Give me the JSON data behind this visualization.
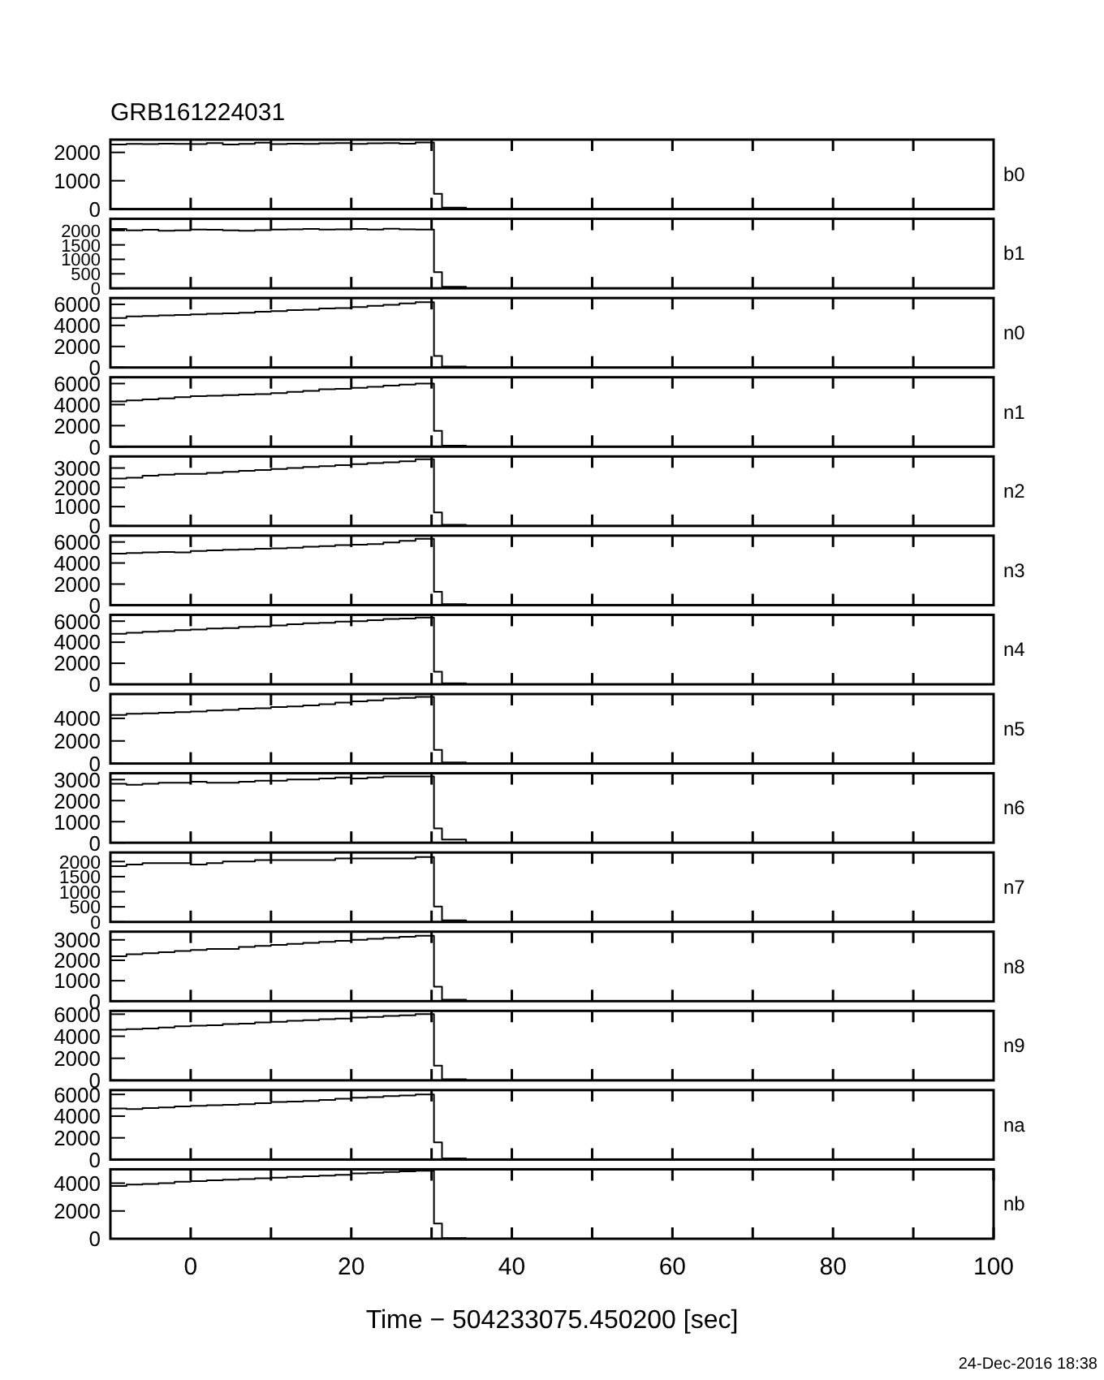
{
  "chart_data": [
    {
      "type": "step",
      "title": "GRB161224031",
      "x": [
        -10,
        -8,
        -6,
        -4,
        -2,
        0,
        2,
        4,
        6,
        8,
        10,
        12,
        14,
        16,
        18,
        20,
        22,
        24,
        26,
        28,
        30.3,
        31.3,
        34.3
      ],
      "xlim": [
        -10,
        100
      ],
      "xticks": [
        {
          "value": 0,
          "label": null
        },
        {
          "value": 10,
          "label": null
        },
        {
          "value": 20,
          "label": null
        },
        {
          "value": 30,
          "label": null
        },
        {
          "value": 40,
          "label": null
        },
        {
          "value": 50,
          "label": null
        },
        {
          "value": 60,
          "label": null
        },
        {
          "value": 70,
          "label": null
        },
        {
          "value": 80,
          "label": null
        },
        {
          "value": 90,
          "label": null
        }
      ],
      "ylim": [
        0,
        2450
      ],
      "yticks": [
        0,
        1000,
        2000
      ],
      "tick_labels": "y",
      "series": [
        {
          "name": "b0",
          "color": "#000000",
          "values": [
            2280,
            2300,
            2290,
            2310,
            2300,
            2290,
            2330,
            2280,
            2300,
            2340,
            2290,
            2310,
            2300,
            2320,
            2330,
            2300,
            2320,
            2330,
            2310,
            2350,
            540,
            50,
            0
          ]
        }
      ]
    },
    {
      "type": "step",
      "x": [
        -10,
        -8,
        -6,
        -4,
        -2,
        0,
        2,
        4,
        6,
        8,
        10,
        12,
        14,
        16,
        18,
        20,
        22,
        24,
        26,
        28,
        30.3,
        31.3,
        34.3
      ],
      "xlim": [
        -10,
        100
      ],
      "xticks": [
        {
          "value": 0,
          "label": null
        },
        {
          "value": 10,
          "label": null
        },
        {
          "value": 20,
          "label": null
        },
        {
          "value": 30,
          "label": null
        },
        {
          "value": 40,
          "label": null
        },
        {
          "value": 50,
          "label": null
        },
        {
          "value": 60,
          "label": null
        },
        {
          "value": 70,
          "label": null
        },
        {
          "value": 80,
          "label": null
        },
        {
          "value": 90,
          "label": null
        }
      ],
      "ylim": [
        0,
        2400
      ],
      "yticks": [
        0,
        500,
        1000,
        1500,
        2000
      ],
      "tick_labels": "y",
      "series": [
        {
          "name": "b1",
          "color": "#000000",
          "values": [
            2050,
            2000,
            2020,
            1990,
            2000,
            2030,
            2020,
            2000,
            1990,
            2010,
            2030,
            2040,
            2050,
            2030,
            2040,
            2050,
            2030,
            2060,
            2040,
            2030,
            560,
            50,
            0
          ]
        }
      ]
    },
    {
      "type": "step",
      "x": [
        -10,
        -8,
        -6,
        -4,
        -2,
        0,
        2,
        4,
        6,
        8,
        10,
        12,
        14,
        16,
        18,
        20,
        22,
        24,
        26,
        28,
        30.3,
        31.3,
        34.3
      ],
      "xlim": [
        -10,
        100
      ],
      "xticks": [
        {
          "value": 0,
          "label": null
        },
        {
          "value": 10,
          "label": null
        },
        {
          "value": 20,
          "label": null
        },
        {
          "value": 30,
          "label": null
        },
        {
          "value": 40,
          "label": null
        },
        {
          "value": 50,
          "label": null
        },
        {
          "value": 60,
          "label": null
        },
        {
          "value": 70,
          "label": null
        },
        {
          "value": 80,
          "label": null
        },
        {
          "value": 90,
          "label": null
        }
      ],
      "ylim": [
        0,
        6600
      ],
      "yticks": [
        0,
        2000,
        4000,
        6000
      ],
      "tick_labels": "y",
      "series": [
        {
          "name": "n0",
          "color": "#000000",
          "values": [
            4700,
            4850,
            4900,
            4950,
            5000,
            5050,
            5100,
            5150,
            5200,
            5300,
            5350,
            5450,
            5500,
            5600,
            5650,
            5750,
            5850,
            5950,
            6100,
            6200,
            1100,
            100,
            0
          ]
        }
      ]
    },
    {
      "type": "step",
      "x": [
        -10,
        -8,
        -6,
        -4,
        -2,
        0,
        2,
        4,
        6,
        8,
        10,
        12,
        14,
        16,
        18,
        20,
        22,
        24,
        26,
        28,
        30.3,
        31.3,
        34.3
      ],
      "xlim": [
        -10,
        100
      ],
      "xticks": [
        {
          "value": 0,
          "label": null
        },
        {
          "value": 10,
          "label": null
        },
        {
          "value": 20,
          "label": null
        },
        {
          "value": 30,
          "label": null
        },
        {
          "value": 40,
          "label": null
        },
        {
          "value": 50,
          "label": null
        },
        {
          "value": 60,
          "label": null
        },
        {
          "value": 70,
          "label": null
        },
        {
          "value": 80,
          "label": null
        },
        {
          "value": 90,
          "label": null
        }
      ],
      "ylim": [
        0,
        6600
      ],
      "yticks": [
        0,
        2000,
        4000,
        6000
      ],
      "tick_labels": "y",
      "series": [
        {
          "name": "n1",
          "color": "#000000",
          "values": [
            4300,
            4400,
            4500,
            4600,
            4700,
            4800,
            4850,
            4900,
            4950,
            5000,
            5100,
            5200,
            5300,
            5450,
            5500,
            5600,
            5700,
            5800,
            5900,
            6000,
            1500,
            100,
            0
          ]
        }
      ]
    },
    {
      "type": "step",
      "x": [
        -10,
        -8,
        -6,
        -4,
        -2,
        0,
        2,
        4,
        6,
        8,
        10,
        12,
        14,
        16,
        18,
        20,
        22,
        24,
        26,
        28,
        30.3,
        31.3,
        34.3
      ],
      "xlim": [
        -10,
        100
      ],
      "xticks": [
        {
          "value": 0,
          "label": null
        },
        {
          "value": 10,
          "label": null
        },
        {
          "value": 20,
          "label": null
        },
        {
          "value": 30,
          "label": null
        },
        {
          "value": 40,
          "label": null
        },
        {
          "value": 50,
          "label": null
        },
        {
          "value": 60,
          "label": null
        },
        {
          "value": 70,
          "label": null
        },
        {
          "value": 80,
          "label": null
        },
        {
          "value": 90,
          "label": null
        }
      ],
      "ylim": [
        0,
        3600
      ],
      "yticks": [
        0,
        1000,
        2000,
        3000
      ],
      "tick_labels": "y",
      "series": [
        {
          "name": "n2",
          "color": "#000000",
          "values": [
            2450,
            2500,
            2600,
            2650,
            2700,
            2700,
            2750,
            2800,
            2850,
            2900,
            2950,
            3000,
            3050,
            3100,
            3150,
            3200,
            3250,
            3300,
            3350,
            3450,
            700,
            60,
            0
          ]
        }
      ]
    },
    {
      "type": "step",
      "x": [
        -10,
        -8,
        -6,
        -4,
        -2,
        0,
        2,
        4,
        6,
        8,
        10,
        12,
        14,
        16,
        18,
        20,
        22,
        24,
        26,
        28,
        30.3,
        31.3,
        34.3
      ],
      "xlim": [
        -10,
        100
      ],
      "xticks": [
        {
          "value": 0,
          "label": null
        },
        {
          "value": 10,
          "label": null
        },
        {
          "value": 20,
          "label": null
        },
        {
          "value": 30,
          "label": null
        },
        {
          "value": 40,
          "label": null
        },
        {
          "value": 50,
          "label": null
        },
        {
          "value": 60,
          "label": null
        },
        {
          "value": 70,
          "label": null
        },
        {
          "value": 80,
          "label": null
        },
        {
          "value": 90,
          "label": null
        }
      ],
      "ylim": [
        0,
        6600
      ],
      "yticks": [
        0,
        2000,
        4000,
        6000
      ],
      "tick_labels": "y",
      "series": [
        {
          "name": "n3",
          "color": "#000000",
          "values": [
            4900,
            4950,
            5000,
            5050,
            5000,
            5150,
            5200,
            5250,
            5300,
            5350,
            5400,
            5450,
            5550,
            5600,
            5700,
            5750,
            5800,
            5950,
            6100,
            6300,
            1270,
            100,
            0
          ]
        }
      ]
    },
    {
      "type": "step",
      "x": [
        -10,
        -8,
        -6,
        -4,
        -2,
        0,
        2,
        4,
        6,
        8,
        10,
        12,
        14,
        16,
        18,
        20,
        22,
        24,
        26,
        28,
        30.3,
        31.3,
        34.3
      ],
      "xlim": [
        -10,
        100
      ],
      "xticks": [
        {
          "value": 0,
          "label": null
        },
        {
          "value": 10,
          "label": null
        },
        {
          "value": 20,
          "label": null
        },
        {
          "value": 30,
          "label": null
        },
        {
          "value": 40,
          "label": null
        },
        {
          "value": 50,
          "label": null
        },
        {
          "value": 60,
          "label": null
        },
        {
          "value": 70,
          "label": null
        },
        {
          "value": 80,
          "label": null
        },
        {
          "value": 90,
          "label": null
        }
      ],
      "ylim": [
        0,
        6600
      ],
      "yticks": [
        0,
        2000,
        4000,
        6000
      ],
      "tick_labels": "y",
      "series": [
        {
          "name": "n4",
          "color": "#000000",
          "values": [
            4800,
            4900,
            5000,
            5050,
            5150,
            5200,
            5300,
            5350,
            5450,
            5500,
            5600,
            5700,
            5800,
            5850,
            5950,
            6000,
            6100,
            6200,
            6250,
            6350,
            1200,
            100,
            0
          ]
        }
      ]
    },
    {
      "type": "step",
      "x": [
        -10,
        -8,
        -6,
        -4,
        -2,
        0,
        2,
        4,
        6,
        8,
        10,
        12,
        14,
        16,
        18,
        20,
        22,
        24,
        26,
        28,
        30.3,
        31.3,
        34.3
      ],
      "xlim": [
        -10,
        100
      ],
      "xticks": [
        {
          "value": 0,
          "label": null
        },
        {
          "value": 10,
          "label": null
        },
        {
          "value": 20,
          "label": null
        },
        {
          "value": 30,
          "label": null
        },
        {
          "value": 40,
          "label": null
        },
        {
          "value": 50,
          "label": null
        },
        {
          "value": 60,
          "label": null
        },
        {
          "value": 70,
          "label": null
        },
        {
          "value": 80,
          "label": null
        },
        {
          "value": 90,
          "label": null
        }
      ],
      "ylim": [
        0,
        6150
      ],
      "yticks": [
        0,
        2000,
        4000
      ],
      "tick_labels": "y",
      "series": [
        {
          "name": "n5",
          "color": "#000000",
          "values": [
            4300,
            4400,
            4450,
            4500,
            4550,
            4600,
            4700,
            4750,
            4850,
            4900,
            5000,
            5050,
            5150,
            5250,
            5400,
            5500,
            5600,
            5750,
            5800,
            5900,
            1200,
            100,
            0
          ]
        }
      ]
    },
    {
      "type": "step",
      "x": [
        -10,
        -8,
        -6,
        -4,
        -2,
        0,
        2,
        4,
        6,
        8,
        10,
        12,
        14,
        16,
        18,
        20,
        22,
        24,
        26,
        28,
        30.3,
        31.3,
        34.3
      ],
      "xlim": [
        -10,
        100
      ],
      "xticks": [
        {
          "value": 0,
          "label": null
        },
        {
          "value": 10,
          "label": null
        },
        {
          "value": 20,
          "label": null
        },
        {
          "value": 30,
          "label": null
        },
        {
          "value": 40,
          "label": null
        },
        {
          "value": 50,
          "label": null
        },
        {
          "value": 60,
          "label": null
        },
        {
          "value": 70,
          "label": null
        },
        {
          "value": 80,
          "label": null
        },
        {
          "value": 90,
          "label": null
        }
      ],
      "ylim": [
        0,
        3300
      ],
      "yticks": [
        0,
        1000,
        2000,
        3000
      ],
      "tick_labels": "y",
      "series": [
        {
          "name": "n6",
          "color": "#000000",
          "values": [
            2800,
            2750,
            2800,
            2850,
            2850,
            2900,
            2850,
            2850,
            2900,
            2950,
            2950,
            3000,
            3000,
            3050,
            3100,
            3050,
            3100,
            3150,
            3150,
            3150,
            680,
            150,
            0
          ]
        }
      ]
    },
    {
      "type": "step",
      "x": [
        -10,
        -8,
        -6,
        -4,
        -2,
        0,
        2,
        4,
        6,
        8,
        10,
        12,
        14,
        16,
        18,
        20,
        22,
        24,
        26,
        28,
        30.3,
        31.3,
        34.3
      ],
      "xlim": [
        -10,
        100
      ],
      "xticks": [
        {
          "value": 0,
          "label": null
        },
        {
          "value": 10,
          "label": null
        },
        {
          "value": 20,
          "label": null
        },
        {
          "value": 30,
          "label": null
        },
        {
          "value": 40,
          "label": null
        },
        {
          "value": 50,
          "label": null
        },
        {
          "value": 60,
          "label": null
        },
        {
          "value": 70,
          "label": null
        },
        {
          "value": 80,
          "label": null
        },
        {
          "value": 90,
          "label": null
        }
      ],
      "ylim": [
        0,
        2300
      ],
      "yticks": [
        0,
        500,
        1000,
        1500,
        2000
      ],
      "tick_labels": "y",
      "series": [
        {
          "name": "n7",
          "color": "#000000",
          "values": [
            1850,
            1900,
            1950,
            1950,
            1950,
            1900,
            1950,
            2000,
            2000,
            2050,
            2050,
            2050,
            2050,
            2050,
            2100,
            2100,
            2100,
            2100,
            2100,
            2150,
            510,
            50,
            0
          ]
        }
      ]
    },
    {
      "type": "step",
      "x": [
        -10,
        -8,
        -6,
        -4,
        -2,
        0,
        2,
        4,
        6,
        8,
        10,
        12,
        14,
        16,
        18,
        20,
        22,
        24,
        26,
        28,
        30.3,
        31.3,
        34.3
      ],
      "xlim": [
        -10,
        100
      ],
      "xticks": [
        {
          "value": 0,
          "label": null
        },
        {
          "value": 10,
          "label": null
        },
        {
          "value": 20,
          "label": null
        },
        {
          "value": 30,
          "label": null
        },
        {
          "value": 40,
          "label": null
        },
        {
          "value": 50,
          "label": null
        },
        {
          "value": 60,
          "label": null
        },
        {
          "value": 70,
          "label": null
        },
        {
          "value": 80,
          "label": null
        },
        {
          "value": 90,
          "label": null
        }
      ],
      "ylim": [
        0,
        3400
      ],
      "yticks": [
        0,
        1000,
        2000,
        3000
      ],
      "tick_labels": "y",
      "series": [
        {
          "name": "n8",
          "color": "#000000",
          "values": [
            2200,
            2300,
            2350,
            2400,
            2450,
            2500,
            2550,
            2550,
            2650,
            2700,
            2750,
            2800,
            2850,
            2900,
            2950,
            3000,
            3050,
            3100,
            3150,
            3200,
            710,
            70,
            0
          ]
        }
      ]
    },
    {
      "type": "step",
      "x": [
        -10,
        -8,
        -6,
        -4,
        -2,
        0,
        2,
        4,
        6,
        8,
        10,
        12,
        14,
        16,
        18,
        20,
        22,
        24,
        26,
        28,
        30.3,
        31.3,
        34.3
      ],
      "xlim": [
        -10,
        100
      ],
      "xticks": [
        {
          "value": 0,
          "label": null
        },
        {
          "value": 10,
          "label": null
        },
        {
          "value": 20,
          "label": null
        },
        {
          "value": 30,
          "label": null
        },
        {
          "value": 40,
          "label": null
        },
        {
          "value": 50,
          "label": null
        },
        {
          "value": 60,
          "label": null
        },
        {
          "value": 70,
          "label": null
        },
        {
          "value": 80,
          "label": null
        },
        {
          "value": 90,
          "label": null
        }
      ],
      "ylim": [
        0,
        6300
      ],
      "yticks": [
        0,
        2000,
        4000,
        6000
      ],
      "tick_labels": "y",
      "series": [
        {
          "name": "n9",
          "color": "#000000",
          "values": [
            4600,
            4650,
            4700,
            4800,
            4900,
            4950,
            5000,
            5100,
            5150,
            5250,
            5300,
            5400,
            5450,
            5550,
            5600,
            5700,
            5750,
            5850,
            5900,
            6000,
            1330,
            100,
            0
          ]
        }
      ]
    },
    {
      "type": "step",
      "x": [
        -10,
        -8,
        -6,
        -4,
        -2,
        0,
        2,
        4,
        6,
        8,
        10,
        12,
        14,
        16,
        18,
        20,
        22,
        24,
        26,
        28,
        30.3,
        31.3,
        34.3
      ],
      "xlim": [
        -10,
        100
      ],
      "xticks": [
        {
          "value": 0,
          "label": null
        },
        {
          "value": 10,
          "label": null
        },
        {
          "value": 20,
          "label": null
        },
        {
          "value": 30,
          "label": null
        },
        {
          "value": 40,
          "label": null
        },
        {
          "value": 50,
          "label": null
        },
        {
          "value": 60,
          "label": null
        },
        {
          "value": 70,
          "label": null
        },
        {
          "value": 80,
          "label": null
        },
        {
          "value": 90,
          "label": null
        }
      ],
      "ylim": [
        0,
        6400
      ],
      "yticks": [
        0,
        2000,
        4000,
        6000
      ],
      "tick_labels": "y",
      "series": [
        {
          "name": "na",
          "color": "#000000",
          "values": [
            4700,
            4650,
            4750,
            4800,
            4900,
            4950,
            5000,
            5050,
            5100,
            5200,
            5300,
            5350,
            5400,
            5500,
            5600,
            5700,
            5750,
            5850,
            5900,
            6000,
            1580,
            100,
            0
          ]
        }
      ]
    },
    {
      "type": "step",
      "x": [
        -10,
        -8,
        -6,
        -4,
        -2,
        0,
        2,
        4,
        6,
        8,
        10,
        12,
        14,
        16,
        18,
        20,
        22,
        24,
        26,
        28,
        30.3,
        31.3,
        34.3
      ],
      "xlim": [
        -10,
        100
      ],
      "xticks": [
        0,
        {
          "value": 10,
          "label": null
        },
        20,
        {
          "value": 30,
          "label": null
        },
        40,
        {
          "value": 50,
          "label": null
        },
        60,
        {
          "value": 70,
          "label": null
        },
        80,
        {
          "value": 90,
          "label": null
        },
        100
      ],
      "ylim": [
        0,
        5000
      ],
      "yticks": [
        0,
        2000,
        4000
      ],
      "xlabel": "Time − 504233075.450200 [sec]",
      "annotations": [
        "24-Dec-2016 18:38"
      ],
      "series": [
        {
          "name": "nb",
          "color": "#000000",
          "values": [
            3800,
            3900,
            3950,
            4000,
            4100,
            4150,
            4200,
            4250,
            4300,
            4350,
            4400,
            4450,
            4500,
            4550,
            4600,
            4700,
            4750,
            4800,
            4850,
            4900,
            1100,
            50,
            0
          ]
        }
      ]
    }
  ]
}
